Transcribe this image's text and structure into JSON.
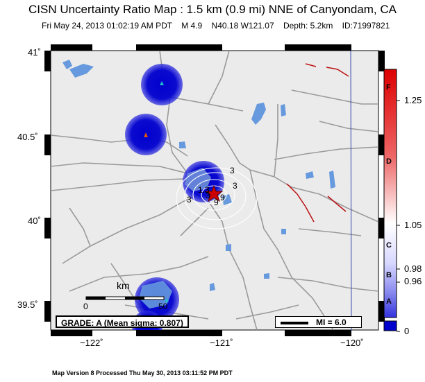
{
  "header": {
    "title": "CISN Uncertainty Ratio Map : 1.5 km (0.9 mi) NNE of Canyondam, CA",
    "subtitle": "Fri May 24, 2013 01:02:19 AM PDT    M 4.9    N40.18 W121.07    Depth: 5.2km    ID:71997821"
  },
  "axes": {
    "lat_labels": [
      "41˚",
      "40.5˚",
      "40˚",
      "39.5˚"
    ],
    "lon_labels": [
      "−122˚",
      "−121˚",
      "−120˚"
    ]
  },
  "scale_bar": {
    "unit": "km",
    "start": "0",
    "end": "50"
  },
  "grade": {
    "text": "GRADE: A (Mean sigma: 0.807)"
  },
  "magnitude_legend": {
    "text": "MI = 6.0"
  },
  "contour_labels": [
    "3",
    "3",
    "3",
    "9",
    "1.3",
    "3",
    "9"
  ],
  "colorbar": {
    "letters": [
      "F",
      "D",
      "C",
      "B",
      "A"
    ],
    "values": [
      "1.25",
      "1.05",
      "0.98",
      "0.96",
      "0"
    ],
    "colors": {
      "low": "#0000cc",
      "mid": "#ffffff",
      "high": "#dd0000"
    }
  },
  "footer": {
    "text": "Map Version 8 Processed Thu May 30, 2013 03:11:52 PM PDT"
  },
  "icons": [
    "station-triangle-icon",
    "epicenter-star-icon"
  ],
  "colors": {
    "land": "#ebebeb",
    "water": "#6699dd",
    "roads": "#999999",
    "faults": "#bb1111"
  }
}
